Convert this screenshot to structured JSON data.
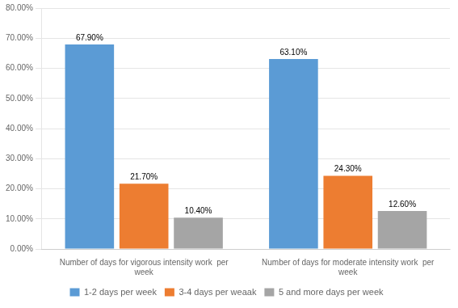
{
  "chart_data": {
    "type": "bar",
    "categories": [
      "Number of days for vigorous intensity work  per\nweek",
      "Number of days for moderate intensity work  per\nweek"
    ],
    "series": [
      {
        "name": "1-2 days per week",
        "color": "#5B9BD5",
        "values": [
          67.9,
          63.1
        ],
        "value_labels": [
          "67.90%",
          "63.10%"
        ]
      },
      {
        "name": "3-4 days per weaak",
        "color": "#ED7D31",
        "values": [
          21.7,
          24.3
        ],
        "value_labels": [
          "21.70%",
          "24.30%"
        ]
      },
      {
        "name": "5 and more days per week",
        "color": "#A5A5A5",
        "values": [
          10.4,
          12.6
        ],
        "value_labels": [
          "10.40%",
          "12.60%"
        ]
      }
    ],
    "ylim": [
      0,
      80
    ],
    "yticks": [
      {
        "value": 0,
        "label": "0.00%"
      },
      {
        "value": 10,
        "label": "10.00%"
      },
      {
        "value": 20,
        "label": "20.00%"
      },
      {
        "value": 30,
        "label": "30.00%"
      },
      {
        "value": 40,
        "label": "40.00%"
      },
      {
        "value": 50,
        "label": "50.00%"
      },
      {
        "value": 60,
        "label": "60.00%"
      },
      {
        "value": 70,
        "label": "70.00%"
      },
      {
        "value": 80,
        "label": "80.00%"
      }
    ],
    "grid": true,
    "legend": "bottom",
    "data_labels": true
  }
}
